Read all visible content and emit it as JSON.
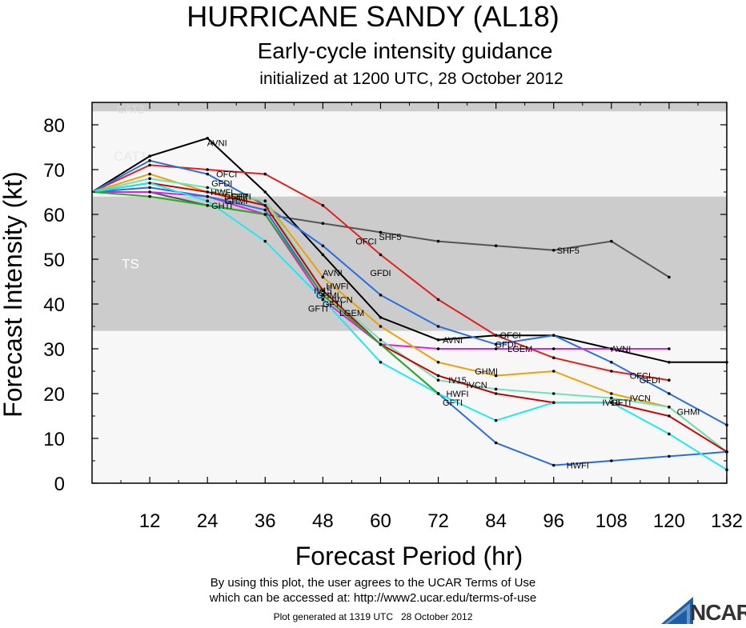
{
  "chart_data": {
    "type": "line",
    "title": "HURRICANE SANDY (AL18)",
    "subtitle": "Early-cycle intensity guidance",
    "subtitle2": "initialized at 1200 UTC, 28 October 2012",
    "xlabel": "Forecast Period (hr)",
    "ylabel": "Forecast Intensity (kt)",
    "xlim": [
      0,
      132
    ],
    "ylim": [
      0,
      85
    ],
    "xticks": [
      12,
      24,
      36,
      48,
      60,
      72,
      84,
      96,
      108,
      120,
      132
    ],
    "yticks": [
      0,
      10,
      20,
      30,
      40,
      50,
      60,
      70,
      80
    ],
    "bands": [
      {
        "label": "TS",
        "from": 34,
        "to": 64
      },
      {
        "label": "CAT1",
        "from": 64,
        "to": 83
      },
      {
        "label": "CAT2",
        "from": 83,
        "to": 96
      }
    ],
    "colors": {
      "band_light": "#f7f7f7",
      "band_dark": "#cccccc",
      "band_text": "#ffffff"
    },
    "series": [
      {
        "name": "SHF5",
        "color": "#555555",
        "points": [
          [
            0,
            65
          ],
          [
            12,
            65
          ],
          [
            24,
            62
          ],
          [
            36,
            60
          ],
          [
            48,
            58
          ],
          [
            60,
            56
          ],
          [
            72,
            54
          ],
          [
            84,
            53
          ],
          [
            96,
            52
          ],
          [
            108,
            54
          ],
          [
            120,
            46
          ]
        ],
        "labels": [
          [
            62,
            55,
            "SHF5"
          ],
          [
            99,
            52,
            "SHF5"
          ]
        ]
      },
      {
        "name": "AVNI",
        "color": "#000000",
        "points": [
          [
            0,
            65
          ],
          [
            12,
            73
          ],
          [
            24,
            77
          ],
          [
            36,
            65
          ],
          [
            48,
            51
          ],
          [
            60,
            37
          ],
          [
            72,
            32
          ],
          [
            84,
            33
          ],
          [
            96,
            33
          ],
          [
            108,
            30
          ],
          [
            120,
            27
          ],
          [
            132,
            27
          ]
        ],
        "labels": [
          [
            26,
            76,
            "AVNI"
          ],
          [
            50,
            47,
            "AVNI"
          ],
          [
            75,
            32,
            "AVNI"
          ],
          [
            110,
            30,
            "AVNI"
          ]
        ]
      },
      {
        "name": "OFCI",
        "color": "#e0201b",
        "points": [
          [
            0,
            65
          ],
          [
            12,
            71
          ],
          [
            24,
            70
          ],
          [
            36,
            69
          ],
          [
            48,
            62
          ],
          [
            60,
            51
          ],
          [
            72,
            41
          ],
          [
            84,
            33
          ],
          [
            96,
            28
          ],
          [
            108,
            25
          ],
          [
            120,
            23
          ]
        ],
        "labels": [
          [
            28,
            69,
            "OFCI"
          ],
          [
            57,
            54,
            "OFCI"
          ],
          [
            87,
            33,
            "OFCI"
          ],
          [
            114,
            24,
            "OFCI"
          ]
        ]
      },
      {
        "name": "GFDI",
        "color": "#2a6fe0",
        "points": [
          [
            0,
            65
          ],
          [
            12,
            72
          ],
          [
            24,
            69
          ],
          [
            36,
            62
          ],
          [
            48,
            53
          ],
          [
            60,
            42
          ],
          [
            72,
            35
          ],
          [
            84,
            31
          ],
          [
            96,
            33
          ],
          [
            108,
            27
          ],
          [
            120,
            20
          ],
          [
            132,
            13
          ]
        ],
        "labels": [
          [
            27,
            67,
            "GFDI"
          ],
          [
            60,
            47,
            "GFDI"
          ],
          [
            86,
            31,
            "GFDI"
          ],
          [
            116,
            23,
            "GFDI"
          ]
        ]
      },
      {
        "name": "LGEM",
        "color": "#e020e0",
        "points": [
          [
            0,
            65
          ],
          [
            12,
            65
          ],
          [
            24,
            64
          ],
          [
            36,
            60
          ],
          [
            48,
            41
          ],
          [
            60,
            31
          ],
          [
            72,
            30
          ],
          [
            84,
            30
          ],
          [
            96,
            30
          ],
          [
            108,
            30
          ],
          [
            120,
            30
          ]
        ],
        "labels": [
          [
            89,
            30,
            "LGEM"
          ]
        ]
      },
      {
        "name": "GHMI",
        "color": "#f0a000",
        "points": [
          [
            0,
            65
          ],
          [
            12,
            69
          ],
          [
            24,
            65
          ],
          [
            36,
            63
          ],
          [
            48,
            46
          ],
          [
            60,
            35
          ],
          [
            72,
            27
          ],
          [
            84,
            24
          ],
          [
            96,
            25
          ],
          [
            108,
            20
          ],
          [
            120,
            17
          ],
          [
            132,
            7
          ]
        ],
        "labels": [
          [
            82,
            25,
            "GHMI"
          ],
          [
            49,
            42,
            "GHMI"
          ],
          [
            124,
            16,
            "GHMI"
          ]
        ]
      },
      {
        "name": "IVCN",
        "color": "#70e0b8",
        "points": [
          [
            0,
            65
          ],
          [
            12,
            68
          ],
          [
            24,
            66
          ],
          [
            36,
            63
          ],
          [
            48,
            43
          ],
          [
            60,
            32
          ],
          [
            72,
            23
          ],
          [
            84,
            21
          ],
          [
            96,
            20
          ],
          [
            108,
            19
          ],
          [
            120,
            17
          ],
          [
            132,
            7
          ]
        ],
        "labels": [
          [
            80,
            22,
            "IVCN"
          ],
          [
            114,
            19,
            "IVCN"
          ]
        ]
      },
      {
        "name": "IV15",
        "color": "#cc0000",
        "points": [
          [
            0,
            65
          ],
          [
            12,
            67
          ],
          [
            24,
            65
          ],
          [
            36,
            62
          ],
          [
            48,
            43
          ],
          [
            60,
            31
          ],
          [
            72,
            24
          ],
          [
            84,
            20
          ],
          [
            96,
            18
          ],
          [
            108,
            18
          ],
          [
            120,
            15
          ],
          [
            132,
            7
          ]
        ],
        "labels": [
          [
            76,
            23,
            "IV15"
          ],
          [
            108,
            18,
            "IV15"
          ]
        ]
      },
      {
        "name": "HWFI",
        "color": "#2a6fe0",
        "points": [
          [
            0,
            65
          ],
          [
            12,
            66
          ],
          [
            24,
            64
          ],
          [
            36,
            61
          ],
          [
            48,
            42
          ],
          [
            60,
            31
          ],
          [
            72,
            20
          ],
          [
            84,
            9
          ],
          [
            96,
            4
          ],
          [
            108,
            5
          ],
          [
            120,
            6
          ],
          [
            132,
            7
          ]
        ],
        "labels": [
          [
            27,
            65,
            "HWFI"
          ],
          [
            76,
            20,
            "HWFI"
          ],
          [
            101,
            4,
            "HWFI"
          ],
          [
            51,
            44,
            "HWFI"
          ]
        ]
      },
      {
        "name": "GFTI",
        "color": "#20e8f0",
        "points": [
          [
            0,
            65
          ],
          [
            12,
            67
          ],
          [
            24,
            63
          ],
          [
            36,
            54
          ],
          [
            48,
            41
          ],
          [
            60,
            27
          ],
          [
            72,
            20
          ],
          [
            84,
            14
          ],
          [
            96,
            18
          ],
          [
            108,
            18
          ],
          [
            120,
            11
          ],
          [
            132,
            3
          ]
        ],
        "labels": [
          [
            47,
            39,
            "GFTI"
          ],
          [
            75,
            18,
            "GFTI"
          ],
          [
            110,
            18,
            "GFTI"
          ]
        ]
      },
      {
        "name": "DSHP",
        "color": "#20b020",
        "points": [
          [
            0,
            65
          ],
          [
            12,
            64
          ],
          [
            24,
            62
          ],
          [
            36,
            60
          ],
          [
            48,
            42
          ],
          [
            60,
            31
          ],
          [
            72,
            20
          ]
        ],
        "labels": [
          [
            30,
            64,
            "DSHP"
          ]
        ]
      },
      {
        "name": "GHTI",
        "color": "#ffffff",
        "points": [],
        "labels": [
          [
            27,
            62,
            "GHTI"
          ],
          [
            30,
            63,
            "GHMI"
          ],
          [
            31,
            64,
            "GFTI"
          ],
          [
            50,
            40,
            "GFTI"
          ],
          [
            48,
            43,
            "IV15"
          ],
          [
            52,
            41,
            "IVCN"
          ],
          [
            54,
            38,
            "LGEM"
          ]
        ]
      }
    ]
  },
  "footer": {
    "terms1": "By using this plot, the user agrees to the UCAR Terms of Use",
    "terms2": "which can be accessed at: http://www2.ucar.edu/terms-of-use",
    "generated": "Plot generated at 1319 UTC   28 October 2012",
    "logo_text": "NCAR"
  }
}
